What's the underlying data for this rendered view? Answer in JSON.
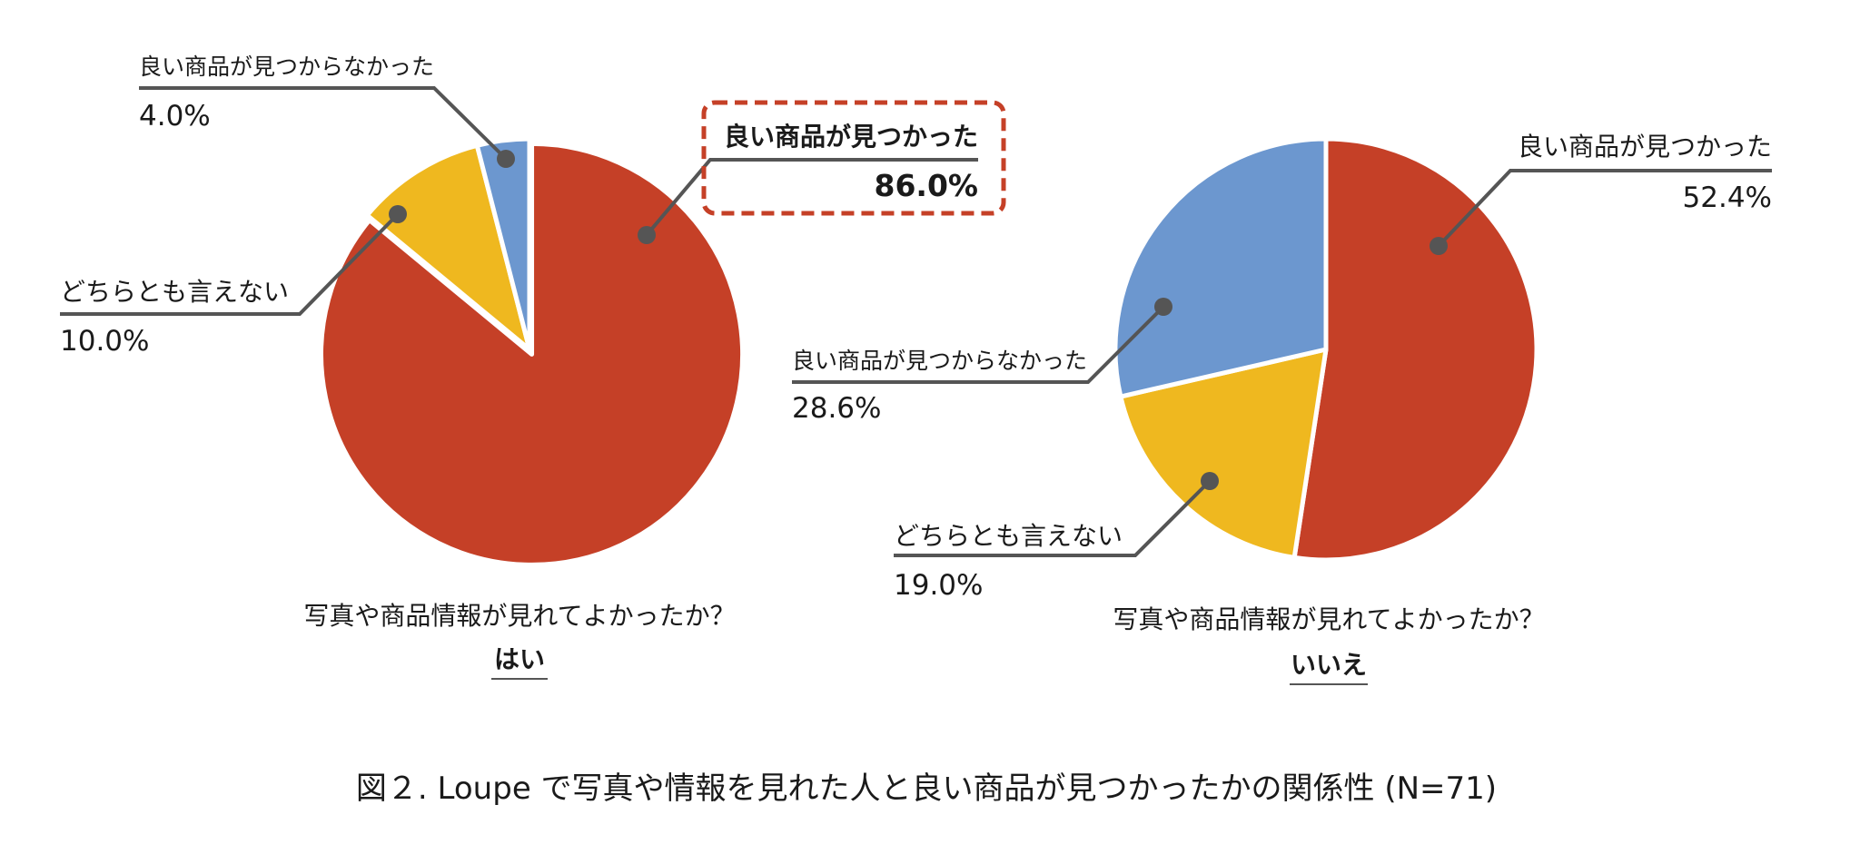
{
  "figure_caption": "図２. Loupe で写真や情報を見れた人と良い商品が見つかったかの関係性 (N=71)",
  "colors": {
    "found": "#c54027",
    "neutral": "#efb81f",
    "not_found": "#6c97cf",
    "leader": "#555555",
    "highlight_border": "#c54027"
  },
  "chart_data": [
    {
      "type": "pie",
      "question": "写真や商品情報が見れてよかったか？",
      "answer": "はい",
      "slices": [
        {
          "label": "良い商品が見つかった",
          "value": 86.0,
          "display": "86.0%",
          "color": "#c54027",
          "highlight": true
        },
        {
          "label": "どちらとも言えない",
          "value": 10.0,
          "display": "10.0%",
          "color": "#efb81f"
        },
        {
          "label": "良い商品が見つからなかった",
          "value": 4.0,
          "display": "4.0%",
          "color": "#6c97cf"
        }
      ]
    },
    {
      "type": "pie",
      "question": "写真や商品情報が見れてよかったか？",
      "answer": "いいえ",
      "slices": [
        {
          "label": "良い商品が見つかった",
          "value": 52.4,
          "display": "52.4%",
          "color": "#c54027"
        },
        {
          "label": "どちらとも言えない",
          "value": 19.0,
          "display": "19.0%",
          "color": "#efb81f"
        },
        {
          "label": "良い商品が見つからなかった",
          "value": 28.6,
          "display": "28.6%",
          "color": "#6c97cf"
        }
      ]
    }
  ]
}
